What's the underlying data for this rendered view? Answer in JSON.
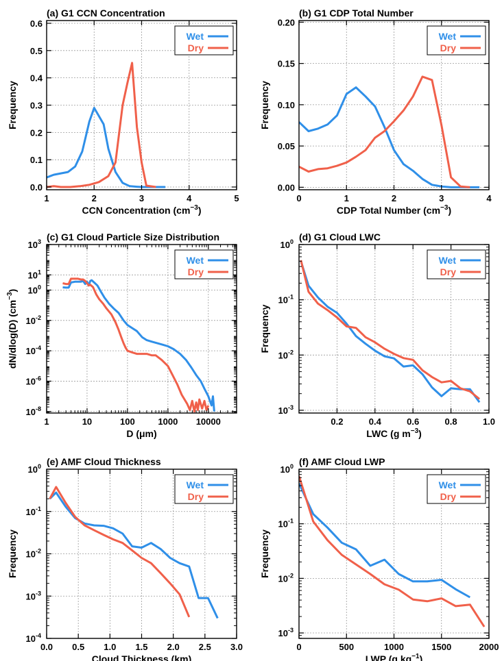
{
  "colors": {
    "wet": "#2f8fe8",
    "dry": "#f0604a",
    "grid": "#9a9a9a",
    "axis": "#000000"
  },
  "chart_data": [
    {
      "id": "a",
      "type": "line",
      "title": "(a) G1 CCN Concentration",
      "xlabel": "CCN Concentration (cm",
      "xlabel_sup": "−3",
      "xlabel_tail": ")",
      "ylabel": "Frequency",
      "xscale": "linear",
      "yscale": "linear",
      "xlim": [
        1,
        5
      ],
      "ylim": [
        -0.01,
        0.61
      ],
      "xticks": [
        1,
        2,
        3,
        4,
        5
      ],
      "xtick_labels": [
        "1",
        "2",
        "3",
        "4",
        "5"
      ],
      "yticks": [
        0.0,
        0.1,
        0.2,
        0.3,
        0.4,
        0.5,
        0.6
      ],
      "ytick_labels": [
        "0.0",
        "0.1",
        "0.2",
        "0.3",
        "0.4",
        "0.5",
        "0.6"
      ],
      "legend": {
        "position": "top-right",
        "entries": [
          "Wet",
          "Dry"
        ]
      },
      "series": [
        {
          "name": "Wet",
          "x": [
            1.0,
            1.15,
            1.3,
            1.45,
            1.6,
            1.75,
            1.9,
            2.0,
            2.1,
            2.2,
            2.3,
            2.45,
            2.6,
            2.75,
            2.9,
            3.0,
            3.2,
            3.5
          ],
          "y": [
            0.035,
            0.045,
            0.05,
            0.055,
            0.075,
            0.13,
            0.24,
            0.29,
            0.26,
            0.23,
            0.14,
            0.055,
            0.015,
            0.003,
            0.001,
            0.0,
            0.0,
            0.0
          ]
        },
        {
          "name": "Dry",
          "x": [
            1.0,
            1.15,
            1.3,
            1.5,
            1.7,
            1.9,
            2.1,
            2.3,
            2.45,
            2.6,
            2.7,
            2.8,
            2.9,
            3.0,
            3.1,
            3.3
          ],
          "y": [
            0.0,
            0.003,
            0.0,
            0.0,
            0.003,
            0.008,
            0.018,
            0.04,
            0.09,
            0.3,
            0.38,
            0.455,
            0.22,
            0.09,
            0.005,
            0.0
          ]
        }
      ]
    },
    {
      "id": "b",
      "type": "line",
      "title": "(b) G1 CDP Total Number",
      "xlabel": "CDP Total Number (cm",
      "xlabel_sup": "−3",
      "xlabel_tail": ")",
      "ylabel": "Frequency",
      "xscale": "linear",
      "yscale": "linear",
      "xlim": [
        0,
        4
      ],
      "ylim": [
        -0.003,
        0.202
      ],
      "xticks": [
        0,
        1,
        2,
        3,
        4
      ],
      "xtick_labels": [
        "0",
        "1",
        "2",
        "3",
        "4"
      ],
      "yticks": [
        0.0,
        0.05,
        0.1,
        0.15,
        0.2
      ],
      "ytick_labels": [
        "0.00",
        "0.05",
        "0.10",
        "0.15",
        "0.20"
      ],
      "legend": {
        "position": "top-right",
        "entries": [
          "Wet",
          "Dry"
        ]
      },
      "series": [
        {
          "name": "Wet",
          "x": [
            0.0,
            0.2,
            0.4,
            0.6,
            0.8,
            1.0,
            1.2,
            1.4,
            1.6,
            1.8,
            2.0,
            2.2,
            2.4,
            2.6,
            2.8,
            3.0,
            3.2,
            3.4,
            3.6,
            3.8
          ],
          "y": [
            0.079,
            0.068,
            0.071,
            0.076,
            0.087,
            0.113,
            0.121,
            0.11,
            0.098,
            0.073,
            0.045,
            0.028,
            0.02,
            0.01,
            0.003,
            0.001,
            0.0,
            0.0,
            0.0,
            0.0
          ]
        },
        {
          "name": "Dry",
          "x": [
            0.0,
            0.2,
            0.4,
            0.6,
            0.8,
            1.0,
            1.2,
            1.4,
            1.6,
            1.8,
            2.0,
            2.2,
            2.4,
            2.6,
            2.8,
            3.0,
            3.2,
            3.4,
            3.6
          ],
          "y": [
            0.025,
            0.019,
            0.022,
            0.023,
            0.026,
            0.03,
            0.037,
            0.045,
            0.06,
            0.068,
            0.08,
            0.093,
            0.11,
            0.134,
            0.13,
            0.075,
            0.012,
            0.001,
            0.0
          ]
        }
      ]
    },
    {
      "id": "c",
      "type": "line",
      "title": "(c) G1 Cloud Particle Size Distribution",
      "xlabel": "D (μm)",
      "ylabel": "dN/dlog(D) (cm",
      "ylabel_sup": "−3",
      "ylabel_tail": ")",
      "xscale": "log",
      "yscale": "log",
      "xlim": [
        1,
        50000
      ],
      "ylim": [
        -8.1,
        3
      ],
      "xticks": [
        1,
        10,
        100,
        1000,
        10000
      ],
      "xtick_labels": [
        "1",
        "10",
        "100",
        "1000",
        "10000"
      ],
      "yticks": [
        -8,
        -6,
        -4,
        -2,
        0,
        1,
        3
      ],
      "ytick_labels": [
        [
          "10",
          "-8"
        ],
        [
          "10",
          "-6"
        ],
        [
          "10",
          "-4"
        ],
        [
          "10",
          "-2"
        ],
        [
          "10",
          "0"
        ],
        [
          "10",
          "1"
        ],
        [
          "10",
          "3"
        ]
      ],
      "ytick_exponents": [
        -8,
        -6,
        -4,
        -2,
        0,
        1,
        3
      ],
      "legend": {
        "position": "top-right",
        "entries": [
          "Wet",
          "Dry"
        ]
      },
      "series": [
        {
          "name": "Wet",
          "x": [
            2.5,
            3,
            3.5,
            4,
            5,
            6,
            7,
            8,
            9,
            10,
            11,
            12,
            13,
            15,
            18,
            22,
            27,
            35,
            45,
            60,
            80,
            100,
            130,
            170,
            230,
            300,
            400,
            550,
            750,
            1000,
            1400,
            2000,
            2800,
            3800,
            5000,
            6500,
            8000,
            10000,
            12000,
            13000,
            14000
          ],
          "y": [
            0.18,
            0.16,
            0.16,
            0.5,
            0.55,
            0.55,
            0.55,
            0.6,
            0.4,
            0.55,
            0.3,
            0.6,
            0.65,
            0.5,
            0.3,
            -0.1,
            -0.5,
            -0.9,
            -1.2,
            -1.5,
            -2.0,
            -2.3,
            -2.5,
            -2.7,
            -3.1,
            -3.3,
            -3.4,
            -3.5,
            -3.6,
            -3.7,
            -3.9,
            -4.2,
            -4.6,
            -5.1,
            -5.6,
            -6.0,
            -6.5,
            -7.0,
            -7.6,
            -7.0,
            -8.0
          ]
        },
        {
          "name": "Dry",
          "x": [
            2.5,
            3,
            3.5,
            4,
            5,
            6,
            7,
            8,
            9,
            10,
            11,
            12,
            14,
            17,
            20,
            25,
            30,
            40,
            50,
            60,
            70,
            80,
            90,
            100,
            130,
            170,
            220,
            300,
            400,
            500,
            700,
            1000,
            1300,
            1700,
            2200,
            3000,
            3500,
            4000,
            4500,
            5000,
            5500,
            6000,
            7000,
            8000,
            9000,
            10000
          ],
          "y": [
            0.45,
            0.4,
            0.4,
            0.75,
            0.75,
            0.75,
            0.7,
            0.7,
            0.6,
            0.45,
            0.3,
            0.35,
            0.2,
            -0.3,
            -0.6,
            -0.9,
            -1.2,
            -1.6,
            -2.1,
            -2.6,
            -3.1,
            -3.5,
            -3.8,
            -4.0,
            -4.1,
            -4.2,
            -4.2,
            -4.2,
            -4.3,
            -4.3,
            -4.6,
            -5.0,
            -5.6,
            -6.2,
            -6.9,
            -7.5,
            -7.9,
            -7.3,
            -8.0,
            -7.4,
            -7.9,
            -7.2,
            -7.8,
            -7.3,
            -7.9,
            -7.6
          ]
        }
      ]
    },
    {
      "id": "d",
      "type": "line",
      "title": "(d) G1 Cloud LWC",
      "xlabel": "LWC (g m",
      "xlabel_sup": "−3",
      "xlabel_tail": ")",
      "ylabel": "Frequency",
      "xscale": "linear",
      "yscale": "log",
      "xlim": [
        0,
        1
      ],
      "ylim": [
        -3.05,
        0
      ],
      "xticks": [
        0.2,
        0.4,
        0.6,
        0.8,
        1.0
      ],
      "xtick_labels": [
        "0.2",
        "0.4",
        "0.6",
        "0.8",
        "1.0"
      ],
      "yticks": [
        -3,
        -2,
        -1,
        0
      ],
      "ytick_labels": [
        [
          "10",
          "-3"
        ],
        [
          "10",
          "-2"
        ],
        [
          "10",
          "-1"
        ],
        [
          "10",
          "0"
        ]
      ],
      "ytick_exponents": [
        -3,
        -2,
        -1,
        0
      ],
      "legend": {
        "position": "top-right",
        "entries": [
          "Wet",
          "Dry"
        ]
      },
      "series": [
        {
          "name": "Wet",
          "x": [
            0.01,
            0.05,
            0.1,
            0.15,
            0.2,
            0.25,
            0.3,
            0.35,
            0.4,
            0.45,
            0.5,
            0.55,
            0.6,
            0.65,
            0.7,
            0.75,
            0.8,
            0.85,
            0.9,
            0.95
          ],
          "y": [
            0.5,
            0.18,
            0.11,
            0.075,
            0.058,
            0.037,
            0.022,
            0.016,
            0.012,
            0.0095,
            0.0087,
            0.0062,
            0.0065,
            0.0045,
            0.0026,
            0.0018,
            0.0025,
            0.0024,
            0.0024,
            0.0014
          ]
        },
        {
          "name": "Dry",
          "x": [
            0.01,
            0.05,
            0.1,
            0.15,
            0.2,
            0.25,
            0.3,
            0.35,
            0.4,
            0.45,
            0.5,
            0.55,
            0.6,
            0.65,
            0.7,
            0.75,
            0.8,
            0.85,
            0.9,
            0.95
          ],
          "y": [
            0.52,
            0.14,
            0.085,
            0.065,
            0.048,
            0.033,
            0.031,
            0.021,
            0.017,
            0.013,
            0.0105,
            0.0088,
            0.0082,
            0.0053,
            0.004,
            0.0032,
            0.0034,
            0.0025,
            0.0022,
            0.0016
          ]
        }
      ]
    },
    {
      "id": "e",
      "type": "line",
      "title": "(e) AMF Cloud Thickness",
      "xlabel": "Cloud Thickness (km)",
      "ylabel": "Frequency",
      "xscale": "linear",
      "yscale": "log",
      "xlim": [
        0,
        3
      ],
      "ylim": [
        -4,
        0
      ],
      "xticks": [
        0.0,
        0.5,
        1.0,
        1.5,
        2.0,
        2.5,
        3.0
      ],
      "xtick_labels": [
        "0.0",
        "0.5",
        "1.0",
        "1.5",
        "2.0",
        "2.5",
        "3.0"
      ],
      "yticks": [
        -4,
        -3,
        -2,
        -1,
        0
      ],
      "ytick_labels": [
        [
          "10",
          "-4"
        ],
        [
          "10",
          "-3"
        ],
        [
          "10",
          "-2"
        ],
        [
          "10",
          "-1"
        ],
        [
          "10",
          "0"
        ]
      ],
      "ytick_exponents": [
        -4,
        -3,
        -2,
        -1,
        0
      ],
      "legend": {
        "position": "top-right",
        "entries": [
          "Wet",
          "Dry"
        ]
      },
      "series": [
        {
          "name": "Wet",
          "x": [
            0.05,
            0.15,
            0.3,
            0.45,
            0.6,
            0.75,
            0.9,
            1.05,
            1.2,
            1.35,
            1.5,
            1.65,
            1.8,
            1.95,
            2.1,
            2.25,
            2.4,
            2.55,
            2.7
          ],
          "y": [
            0.2,
            0.28,
            0.13,
            0.07,
            0.052,
            0.047,
            0.046,
            0.04,
            0.03,
            0.015,
            0.014,
            0.018,
            0.013,
            0.008,
            0.006,
            0.005,
            0.0009,
            0.0009,
            0.0003
          ]
        },
        {
          "name": "Dry",
          "x": [
            0.05,
            0.15,
            0.3,
            0.45,
            0.6,
            0.75,
            0.9,
            1.05,
            1.2,
            1.35,
            1.5,
            1.65,
            1.8,
            1.95,
            2.1,
            2.25
          ],
          "y": [
            0.2,
            0.38,
            0.16,
            0.075,
            0.047,
            0.036,
            0.028,
            0.022,
            0.018,
            0.012,
            0.008,
            0.006,
            0.0035,
            0.002,
            0.0011,
            0.00032
          ]
        }
      ]
    },
    {
      "id": "f",
      "type": "line",
      "title": "(f) AMF Cloud LWP",
      "xlabel": "LWP (g kg",
      "xlabel_sup": "−1",
      "xlabel_tail": ")",
      "ylabel": "Frequency",
      "xscale": "linear",
      "yscale": "log",
      "xlim": [
        0,
        2000
      ],
      "ylim": [
        -3.1,
        0
      ],
      "xticks": [
        0,
        500,
        1000,
        1500,
        2000
      ],
      "xtick_labels": [
        "0",
        "500",
        "1000",
        "1500",
        "2000"
      ],
      "yticks": [
        -3,
        -2,
        -1,
        0
      ],
      "ytick_labels": [
        [
          "10",
          "-3"
        ],
        [
          "10",
          "-2"
        ],
        [
          "10",
          "-1"
        ],
        [
          "10",
          "0"
        ]
      ],
      "ytick_exponents": [
        -3,
        -2,
        -1,
        0
      ],
      "legend": {
        "position": "top-right",
        "entries": [
          "Wet",
          "Dry"
        ]
      },
      "series": [
        {
          "name": "Wet",
          "x": [
            0,
            150,
            300,
            450,
            600,
            750,
            900,
            1050,
            1200,
            1350,
            1500,
            1650,
            1800
          ],
          "y": [
            0.55,
            0.15,
            0.085,
            0.045,
            0.034,
            0.017,
            0.022,
            0.012,
            0.0088,
            0.0088,
            0.0094,
            0.0063,
            0.0045
          ]
        },
        {
          "name": "Dry",
          "x": [
            0,
            150,
            300,
            450,
            600,
            750,
            900,
            1050,
            1200,
            1350,
            1500,
            1650,
            1800,
            1950
          ],
          "y": [
            0.75,
            0.11,
            0.05,
            0.027,
            0.018,
            0.012,
            0.0078,
            0.0062,
            0.0041,
            0.0038,
            0.0043,
            0.0031,
            0.0033,
            0.0013
          ]
        }
      ]
    }
  ]
}
